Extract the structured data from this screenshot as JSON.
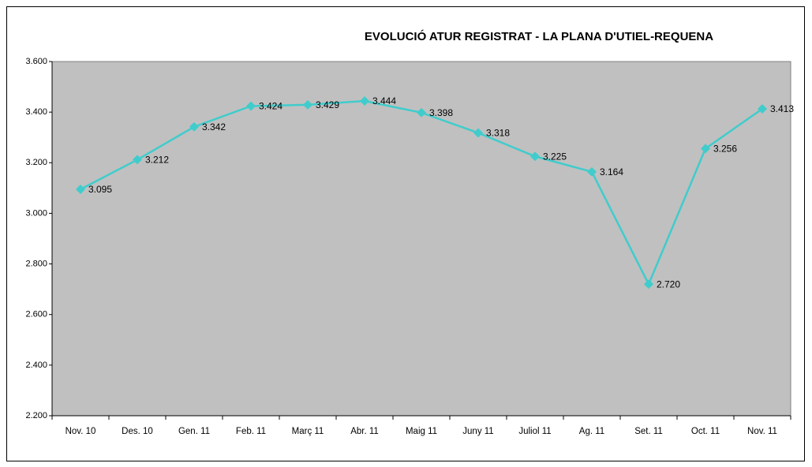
{
  "chart_data": {
    "type": "line",
    "title": "EVOLUCIÓ ATUR REGISTRAT - LA PLANA D'UTIEL-REQUENA",
    "categories": [
      "Nov. 10",
      "Des. 10",
      "Gen. 11",
      "Feb. 11",
      "Març 11",
      "Abr. 11",
      "Maig 11",
      "Juny 11",
      "Juliol 11",
      "Ag. 11",
      "Set. 11",
      "Oct. 11",
      "Nov. 11"
    ],
    "values": [
      3095,
      3212,
      3342,
      3424,
      3429,
      3444,
      3398,
      3318,
      3225,
      3164,
      2720,
      3256,
      3413
    ],
    "value_labels": [
      "3.095",
      "3.212",
      "3.342",
      "3.424",
      "3.429",
      "3.444",
      "3.398",
      "3.318",
      "3.225",
      "3.164",
      "2.720",
      "3.256",
      "3.413"
    ],
    "color": "#40cccc",
    "ylim": [
      2200,
      3600
    ],
    "yticks": [
      {
        "value": 2200,
        "label": "2.200"
      },
      {
        "value": 2400,
        "label": "2.400"
      },
      {
        "value": 2600,
        "label": "2.600"
      },
      {
        "value": 2800,
        "label": "2.800"
      },
      {
        "value": 3000,
        "label": "3.000"
      },
      {
        "value": 3200,
        "label": "3.200"
      },
      {
        "value": 3400,
        "label": "3.400"
      },
      {
        "value": 3600,
        "label": "3.600"
      }
    ],
    "grid": false
  }
}
